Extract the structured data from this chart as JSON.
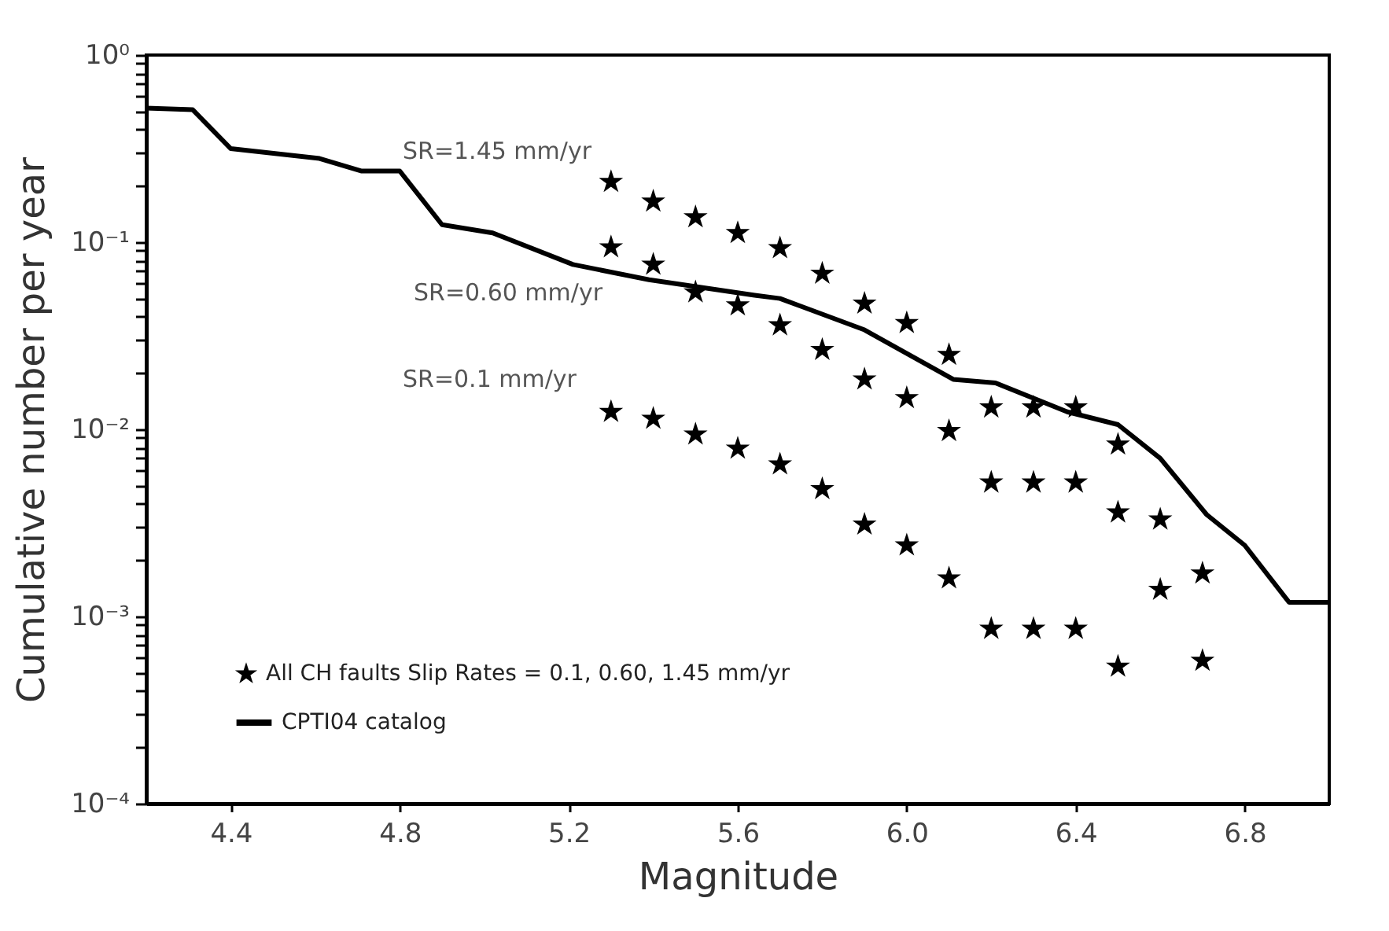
{
  "chart_data": {
    "type": "scatter",
    "xlabel": "Magnitude",
    "ylabel": "Cumulative number per year",
    "log": "y",
    "grid": false,
    "legend": "bottom left",
    "xlim": [
      4.2,
      7.0
    ],
    "xticks": [
      4.4,
      4.8,
      5.2,
      5.6,
      {
        "value": 6,
        "label": "6.0"
      },
      6.4,
      6.8
    ],
    "ylim": [
      0.0001,
      1
    ],
    "yticks": [
      {
        "value": 0.0001,
        "label": "10⁻⁴"
      },
      {
        "value": 0.0002,
        "label": null
      },
      {
        "value": 0.0003,
        "label": null
      },
      {
        "value": 0.0004,
        "label": null
      },
      {
        "value": 0.0005,
        "label": null
      },
      {
        "value": 0.0006,
        "label": null
      },
      {
        "value": 0.0007,
        "label": null
      },
      {
        "value": 0.0008,
        "label": null
      },
      {
        "value": 0.0009,
        "label": null
      },
      {
        "value": 0.001,
        "label": "10⁻³"
      },
      {
        "value": 0.002,
        "label": null
      },
      {
        "value": 0.003,
        "label": null
      },
      {
        "value": 0.004,
        "label": null
      },
      {
        "value": 0.005,
        "label": null
      },
      {
        "value": 0.006,
        "label": null
      },
      {
        "value": 0.007,
        "label": null
      },
      {
        "value": 0.008,
        "label": null
      },
      {
        "value": 0.009,
        "label": null
      },
      {
        "value": 0.01,
        "label": "10⁻²"
      },
      {
        "value": 0.02,
        "label": null
      },
      {
        "value": 0.03,
        "label": null
      },
      {
        "value": 0.04,
        "label": null
      },
      {
        "value": 0.05,
        "label": null
      },
      {
        "value": 0.06,
        "label": null
      },
      {
        "value": 0.07,
        "label": null
      },
      {
        "value": 0.08,
        "label": null
      },
      {
        "value": 0.09,
        "label": null
      },
      {
        "value": 0.1,
        "label": "10⁻¹"
      },
      {
        "value": 0.2,
        "label": null
      },
      {
        "value": 0.3,
        "label": null
      },
      {
        "value": 0.4,
        "label": null
      },
      {
        "value": 0.5,
        "label": null
      },
      {
        "value": 0.6,
        "label": null
      },
      {
        "value": 0.7,
        "label": null
      },
      {
        "value": 0.8,
        "label": null
      },
      {
        "value": 0.9,
        "label": null
      },
      {
        "value": 1,
        "label": "10⁰"
      }
    ],
    "series": [
      {
        "name": "All CH faults Slip Rates = 0.1, 0.60, 1.45 mm/yr",
        "color": "#000000",
        "marker": "star",
        "x": [
          5.3,
          5.4,
          5.5,
          5.6,
          5.7,
          5.8,
          5.9,
          6.0,
          6.1,
          6.2,
          6.3,
          6.4,
          6.5,
          6.6,
          6.7,
          5.3,
          5.4,
          5.5,
          5.6,
          5.7,
          5.8,
          5.9,
          6.0,
          6.1,
          6.2,
          6.3,
          6.4,
          6.5,
          6.6,
          6.7,
          5.3,
          5.4,
          5.5,
          5.6,
          5.7,
          5.8,
          5.9,
          6.0,
          6.1,
          6.2,
          6.3,
          6.4,
          6.5
        ],
        "values": [
          0.21,
          0.165,
          0.136,
          0.112,
          0.093,
          0.068,
          0.047,
          0.037,
          0.025,
          0.0131,
          0.0131,
          0.0131,
          0.0083,
          0.0033,
          0.0017,
          0.094,
          0.076,
          0.054,
          0.046,
          0.036,
          0.0266,
          0.0185,
          0.0147,
          0.0098,
          0.0052,
          0.0052,
          0.0052,
          0.0036,
          0.00139,
          0.00058,
          0.0124,
          0.0114,
          0.0094,
          0.0079,
          0.0065,
          0.0048,
          0.0031,
          0.0024,
          0.0016,
          0.00086,
          0.00086,
          0.00086,
          0.00054
        ]
      },
      {
        "name": "CPTI04 catalog",
        "color": "#000000",
        "type": "line",
        "line_style": "solid",
        "marker": "none",
        "x": [
          4.2,
          4.31,
          4.4,
          4.61,
          4.71,
          4.8,
          4.9,
          5.02,
          5.21,
          5.39,
          5.64,
          5.7,
          5.9,
          6.11,
          6.21,
          6.38,
          6.5,
          6.6,
          6.71,
          6.8,
          6.905,
          7.0
        ],
        "values": [
          0.52,
          0.51,
          0.316,
          0.28,
          0.24,
          0.24,
          0.124,
          0.112,
          0.076,
          0.063,
          0.052,
          0.05,
          0.034,
          0.0185,
          0.0177,
          0.0124,
          0.0106,
          0.007,
          0.0035,
          0.0024,
          0.00119,
          0.00119
        ]
      }
    ],
    "annotations": [
      "SR=1.45 mm/yr",
      "SR=0.60 mm/yr",
      "SR=0.1 mm/yr"
    ]
  }
}
